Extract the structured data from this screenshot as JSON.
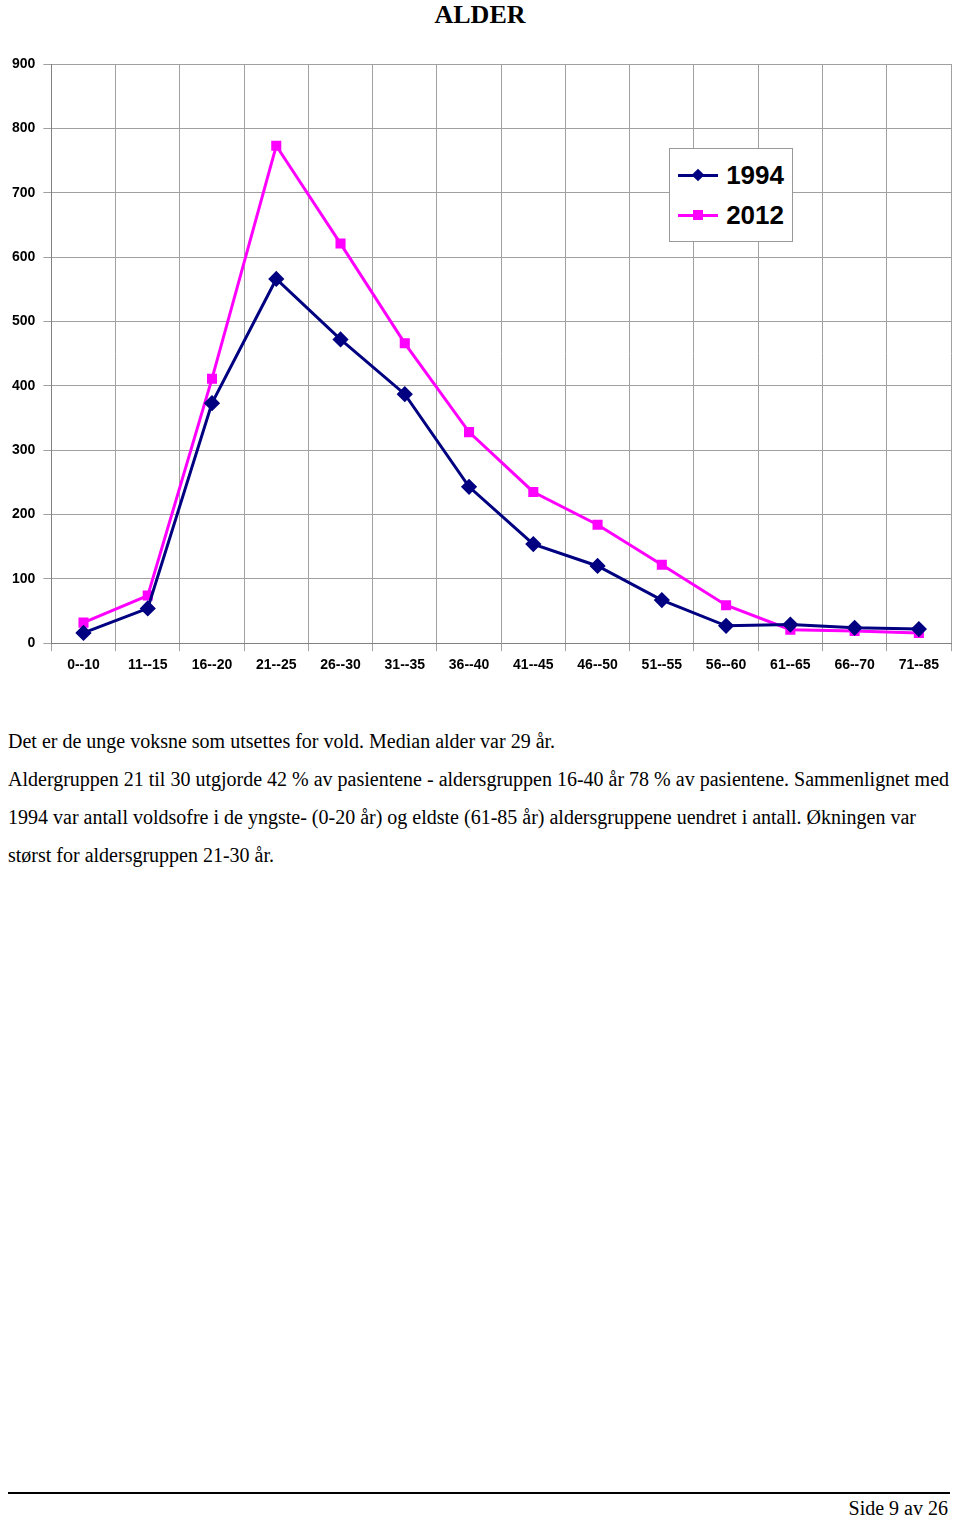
{
  "chart_data": {
    "type": "line",
    "title": "ALDER",
    "categories": [
      "0--10",
      "11--15",
      "16--20",
      "21--25",
      "26--30",
      "31--35",
      "36--40",
      "41--45",
      "46--50",
      "51--55",
      "56--60",
      "61--65",
      "66--70",
      "71--85"
    ],
    "series": [
      {
        "name": "1994",
        "color": "#000080",
        "marker": "diamond",
        "values": [
          16,
          54,
          373,
          566,
          472,
          387,
          243,
          154,
          120,
          67,
          27,
          29,
          24,
          22
        ]
      },
      {
        "name": "2012",
        "color": "#ff00ff",
        "marker": "square",
        "values": [
          32,
          74,
          411,
          773,
          621,
          466,
          328,
          235,
          184,
          122,
          59,
          21,
          19,
          16
        ]
      }
    ],
    "ylim": [
      0,
      900
    ],
    "yticks": [
      0,
      100,
      200,
      300,
      400,
      500,
      600,
      700,
      800,
      900
    ],
    "grid": true,
    "legend": "upper right"
  },
  "page": {
    "paragraphs": [
      "Det er de unge voksne som utsettes for vold. Median alder var 29 år.",
      "Aldergruppen 21 til 30 utgjorde 42 % av pasientene - aldersgruppen 16-40 år 78 % av pasientene. Sammenlignet med 1994 var antall voldsofre i de yngste- (0-20 år) og eldste (61-85 år) aldersgruppene uendret i antall. Økningen var størst for aldersgruppen 21-30 år."
    ],
    "footer": "Side 9 av 26"
  }
}
